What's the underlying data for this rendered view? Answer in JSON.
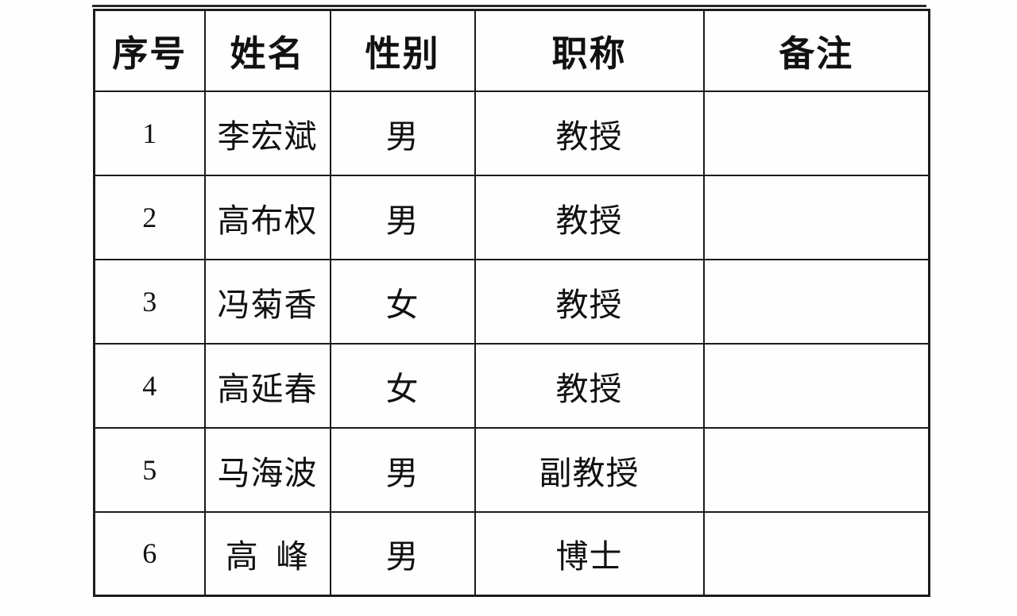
{
  "page": {
    "background_color": "#fefefe",
    "border_color": "#1c1c1c",
    "text_color": "#111111"
  },
  "table": {
    "columns": [
      {
        "key": "index",
        "label": "序号"
      },
      {
        "key": "name",
        "label": "姓名"
      },
      {
        "key": "gender",
        "label": "性别"
      },
      {
        "key": "title",
        "label": "职称"
      },
      {
        "key": "remark",
        "label": "备注"
      }
    ],
    "rows": [
      {
        "index": "1",
        "name": "李宏斌",
        "gender": "男",
        "title": "教授",
        "remark": ""
      },
      {
        "index": "2",
        "name": "高布权",
        "gender": "男",
        "title": "教授",
        "remark": ""
      },
      {
        "index": "3",
        "name": "冯菊香",
        "gender": "女",
        "title": "教授",
        "remark": ""
      },
      {
        "index": "4",
        "name": "高延春",
        "gender": "女",
        "title": "教授",
        "remark": ""
      },
      {
        "index": "5",
        "name": "马海波",
        "gender": "男",
        "title": "副教授",
        "remark": ""
      },
      {
        "index": "6",
        "name": "高 峰",
        "gender": "男",
        "title": "博士",
        "remark": ""
      }
    ]
  }
}
